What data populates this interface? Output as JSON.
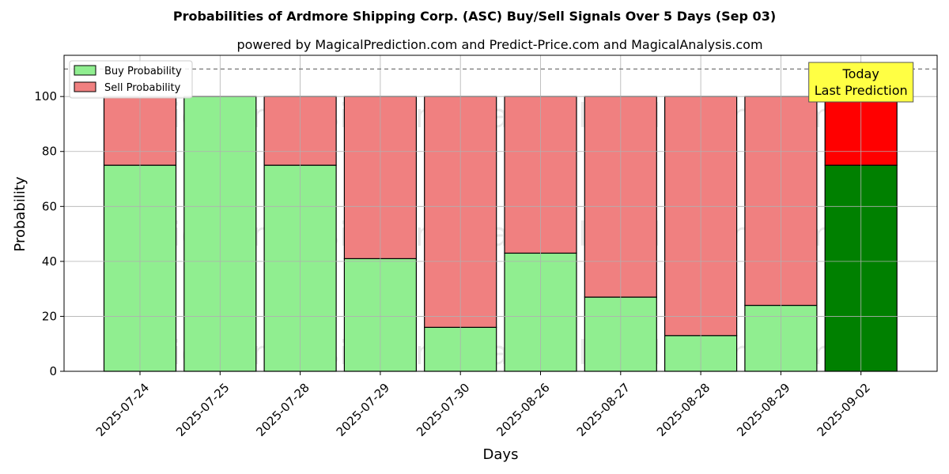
{
  "chart_data": {
    "type": "bar",
    "stacked": true,
    "title": "Probabilities of Ardmore Shipping Corp. (ASC) Buy/Sell Signals Over 5 Days (Sep 03)",
    "subtitle": "powered by MagicalPrediction.com and Predict-Price.com and MagicalAnalysis.com",
    "xlabel": "Days",
    "ylabel": "Probability",
    "ylim": [
      0,
      115
    ],
    "yticks": [
      0,
      20,
      40,
      60,
      80,
      100
    ],
    "reference_line": 110,
    "grid": true,
    "legend_position": "top-left",
    "categories": [
      "2025-07-24",
      "2025-07-25",
      "2025-07-28",
      "2025-07-29",
      "2025-07-30",
      "2025-08-26",
      "2025-08-27",
      "2025-08-28",
      "2025-08-29",
      "2025-09-02"
    ],
    "series": [
      {
        "name": "Buy Probability",
        "values": [
          75,
          100,
          75,
          41,
          16,
          43,
          27,
          13,
          24,
          75
        ]
      },
      {
        "name": "Sell Probability",
        "values": [
          25,
          0,
          25,
          59,
          84,
          57,
          73,
          87,
          76,
          25
        ]
      }
    ],
    "highlight_index": 9,
    "annotation": [
      "Today",
      "Last Prediction"
    ],
    "watermarks": [
      "MagicalAnalysis.com",
      "MagicalPrediction.com"
    ]
  },
  "colors": {
    "buy": "#90ee90",
    "sell": "#f08080",
    "buy_highlight": "#008000",
    "sell_highlight": "#ff0000",
    "annotation_bg": "#ffff44"
  }
}
